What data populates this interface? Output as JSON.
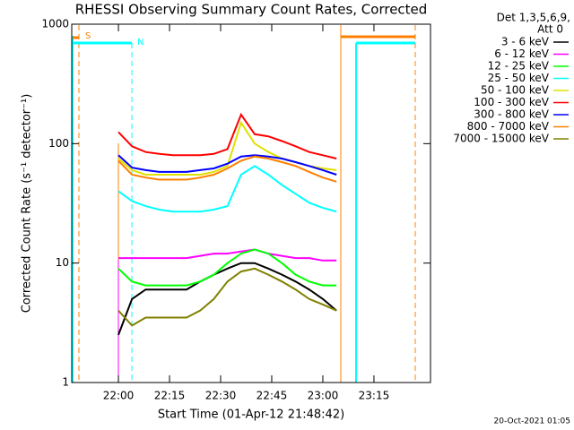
{
  "chart_data": {
    "type": "line",
    "title": "RHESSI Observing Summary Count Rates, Corrected",
    "x_label": "Start Time (01-Apr-12 21:48:42)",
    "y_label": "Corrected Count Rate (s⁻¹ detector⁻¹)",
    "legend_title": [
      "Det 1,3,5,6,9,",
      "Att 0"
    ],
    "footer": "20-Oct-2021 01:05",
    "annotations": [
      "S",
      "N"
    ],
    "log_y": true,
    "xlim": [
      -13.7,
      91.6
    ],
    "xticks": [
      {
        "value": 0,
        "label": "22:00"
      },
      {
        "value": 15,
        "label": "22:15"
      },
      {
        "value": 30,
        "label": "22:30"
      },
      {
        "value": 45,
        "label": "22:45"
      },
      {
        "value": 60,
        "label": "23:00"
      },
      {
        "value": 75,
        "label": "23:15"
      }
    ],
    "ylim": [
      1,
      1000
    ],
    "yticks": [
      1,
      10,
      100,
      1000
    ],
    "x": [
      0,
      4,
      8,
      12,
      16,
      20,
      24,
      28,
      32,
      36,
      40,
      44,
      48,
      52,
      56,
      60,
      64
    ],
    "series": [
      {
        "name": "3 - 6 keV",
        "color": "#000000",
        "values": [
          2.5,
          5,
          6,
          6,
          6,
          6,
          7,
          8,
          9,
          10,
          10,
          9,
          8,
          7,
          6,
          5,
          4
        ]
      },
      {
        "name": "6 - 12 keV",
        "color": "#ff00ff",
        "values": [
          11,
          11,
          11,
          11,
          11,
          11,
          11.5,
          12,
          12,
          12.5,
          13,
          12,
          11.5,
          11,
          11,
          10.5,
          10.5
        ]
      },
      {
        "name": "12 - 25 keV",
        "color": "#00ff00",
        "values": [
          9,
          7,
          6.5,
          6.5,
          6.5,
          6.5,
          7,
          8,
          10,
          12,
          13,
          12,
          10,
          8,
          7,
          6.5,
          6.5
        ]
      },
      {
        "name": "25 - 50 keV",
        "color": "#00ffff",
        "values": [
          40,
          33,
          30,
          28,
          27,
          27,
          27,
          28,
          30,
          55,
          65,
          55,
          45,
          38,
          32,
          29,
          27
        ]
      },
      {
        "name": "50 - 100 keV",
        "color": "#e0e000",
        "values": [
          75,
          60,
          55,
          55,
          55,
          55,
          55,
          58,
          65,
          150,
          100,
          85,
          75,
          70,
          65,
          62,
          60
        ]
      },
      {
        "name": "100 - 300 keV",
        "color": "#ff0000",
        "values": [
          125,
          95,
          85,
          82,
          80,
          80,
          80,
          82,
          90,
          175,
          120,
          115,
          105,
          95,
          85,
          80,
          75
        ]
      },
      {
        "name": "300 - 800 keV",
        "color": "#0000ff",
        "values": [
          80,
          63,
          60,
          58,
          58,
          58,
          60,
          62,
          68,
          78,
          80,
          78,
          75,
          70,
          65,
          60,
          55
        ]
      },
      {
        "name": "800 - 7000 keV",
        "color": "#ff8000",
        "values": [
          72,
          55,
          52,
          50,
          50,
          50,
          52,
          55,
          62,
          72,
          78,
          75,
          70,
          65,
          58,
          52,
          48
        ]
      },
      {
        "name": "7000 - 15000 keV",
        "color": "#808000",
        "values": [
          4,
          3,
          3.5,
          3.5,
          3.5,
          3.5,
          4,
          5,
          7,
          8.5,
          9,
          8,
          7,
          6,
          5,
          4.5,
          4
        ]
      }
    ]
  }
}
